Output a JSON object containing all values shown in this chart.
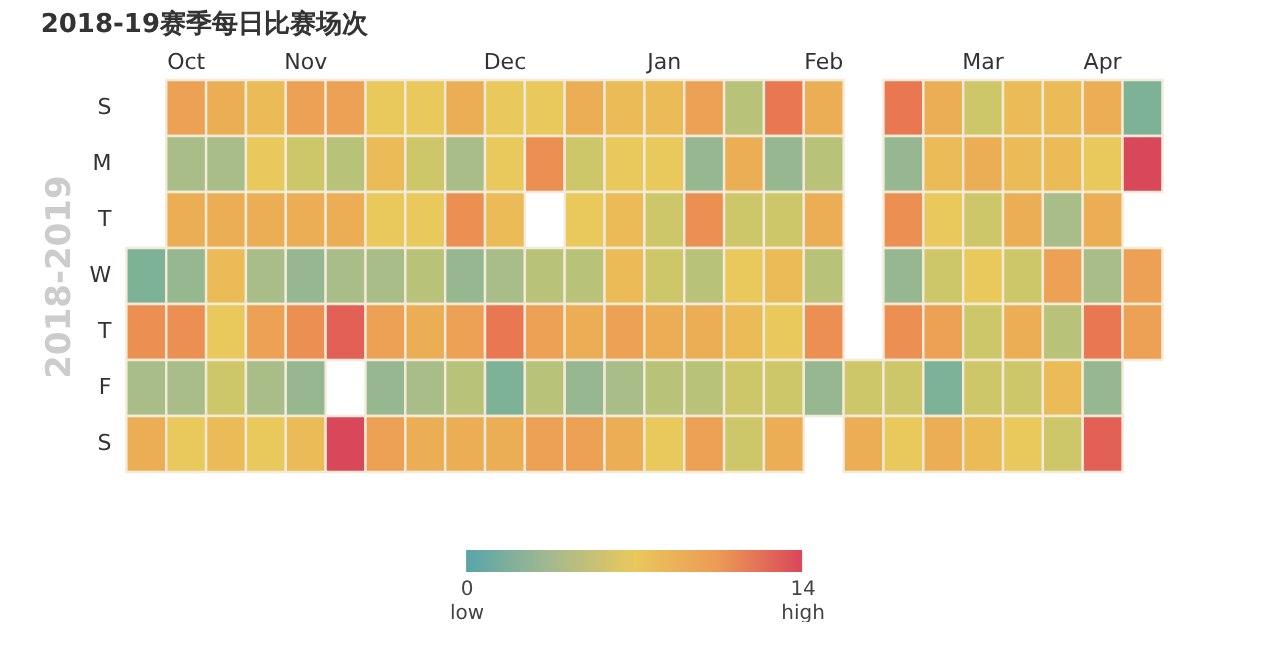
{
  "chart_data": {
    "type": "heatmap",
    "title": "2018-19赛季每日比赛场次",
    "ylabel": "2018-2019",
    "categories": [
      null,
      "Oct",
      null,
      null,
      "Nov",
      null,
      null,
      null,
      null,
      "Dec",
      null,
      null,
      null,
      "Jan",
      null,
      null,
      null,
      "Feb",
      null,
      null,
      null,
      "Mar",
      null,
      null,
      "Apr",
      null
    ],
    "y_categories": [
      "S",
      "M",
      "T",
      "W",
      "T",
      "F",
      "S"
    ],
    "cells": [
      [
        null,
        10,
        9,
        8,
        10,
        10,
        7,
        7,
        9,
        7,
        7,
        9,
        8,
        8,
        10,
        5,
        12,
        9,
        null,
        12,
        9,
        6,
        8,
        8,
        9,
        2
      ],
      [
        null,
        4,
        4,
        7,
        6,
        5,
        8,
        6,
        4,
        7,
        11,
        6,
        7,
        7,
        3,
        9,
        3,
        5,
        null,
        3,
        8,
        9,
        8,
        8,
        7,
        14
      ],
      [
        null,
        9,
        9,
        9,
        9,
        9,
        7,
        7,
        11,
        8,
        null,
        7,
        8,
        6,
        11,
        6,
        6,
        9,
        null,
        11,
        7,
        6,
        9,
        4,
        9,
        null
      ],
      [
        2,
        3,
        8,
        4,
        3,
        4,
        4,
        5,
        3,
        4,
        5,
        5,
        8,
        6,
        5,
        7,
        8,
        5,
        null,
        3,
        6,
        7,
        6,
        10,
        4,
        10
      ],
      [
        11,
        11,
        7,
        10,
        11,
        13,
        10,
        9,
        10,
        12,
        10,
        9,
        10,
        9,
        9,
        8,
        7,
        11,
        null,
        11,
        10,
        6,
        9,
        5,
        12,
        10
      ],
      [
        4,
        4,
        6,
        4,
        3,
        null,
        3,
        4,
        5,
        2,
        5,
        3,
        4,
        5,
        5,
        6,
        6,
        3,
        6,
        6,
        2,
        6,
        6,
        8,
        3,
        null
      ],
      [
        9,
        7,
        8,
        7,
        8,
        14,
        10,
        9,
        9,
        9,
        10,
        10,
        9,
        7,
        10,
        6,
        9,
        null,
        9,
        7,
        9,
        8,
        7,
        6,
        13,
        null
      ]
    ],
    "clim": [
      0,
      14
    ],
    "cticks": [
      0,
      14
    ],
    "annotations": [
      "low",
      "high"
    ]
  }
}
